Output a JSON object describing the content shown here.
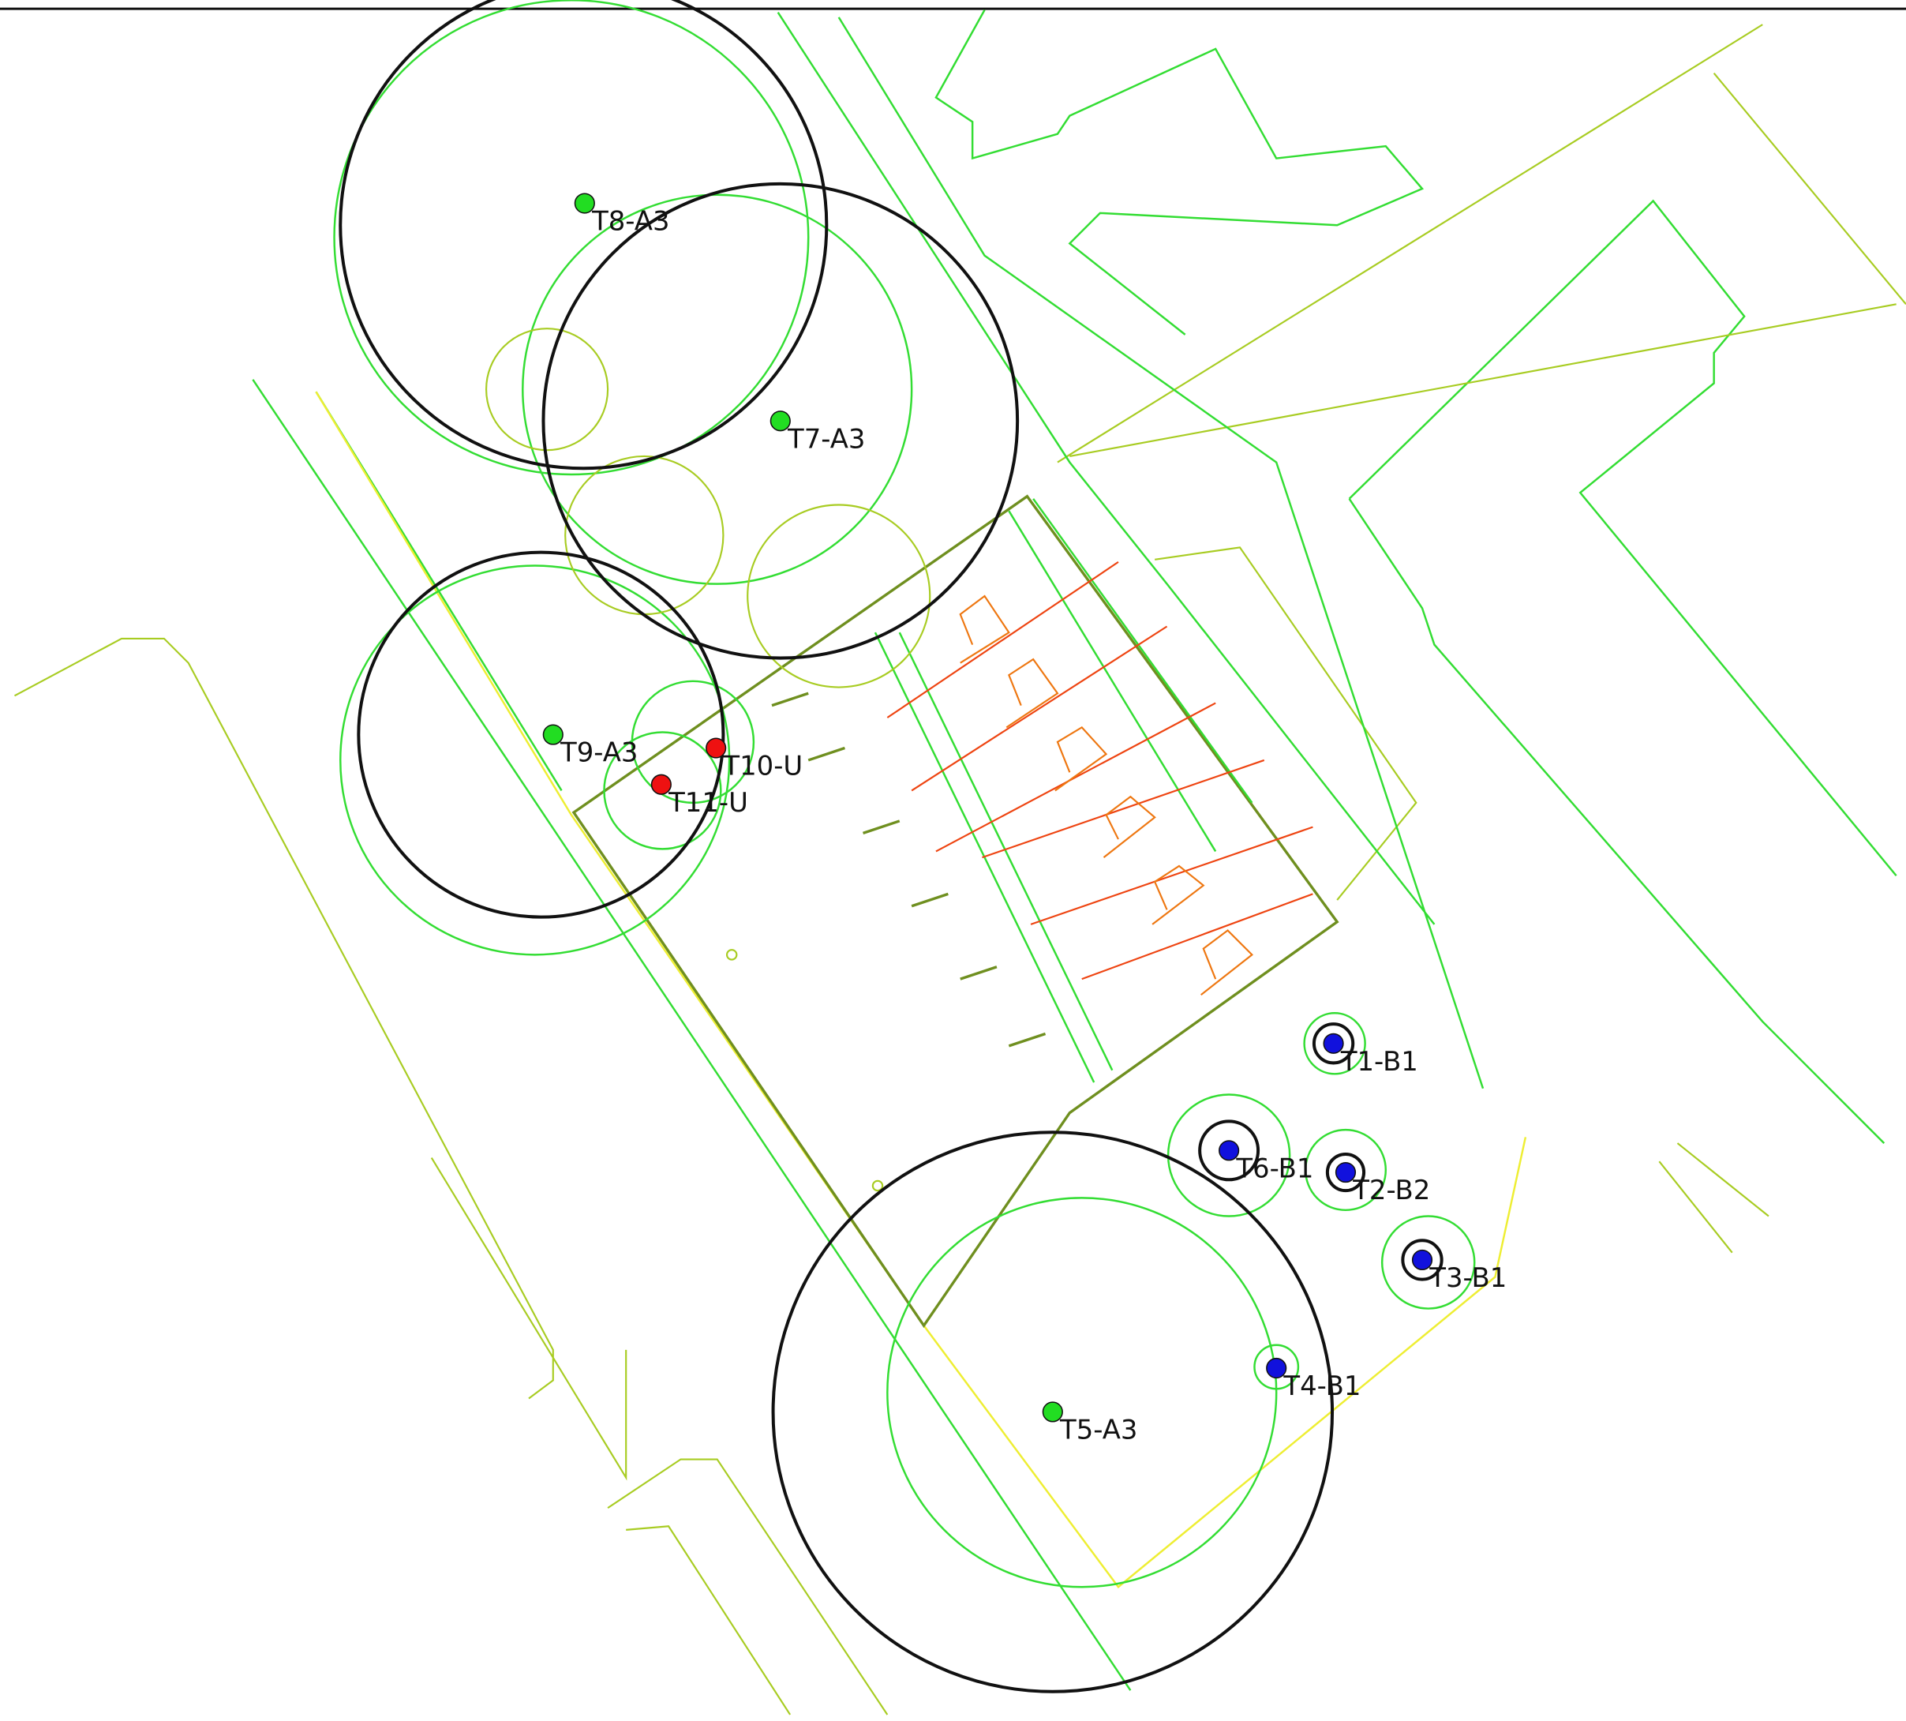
{
  "trees": [
    {
      "label": "T8-A3"
    },
    {
      "label": "T7-A3"
    },
    {
      "label": "T9-A3"
    },
    {
      "label": "T10-U"
    },
    {
      "label": "T11-U"
    },
    {
      "label": "T1-B1"
    },
    {
      "label": "T6-B1"
    },
    {
      "label": "T2-B2"
    },
    {
      "label": "T3-B1"
    },
    {
      "label": "T4-B1"
    },
    {
      "label": "T5-A3"
    }
  ]
}
